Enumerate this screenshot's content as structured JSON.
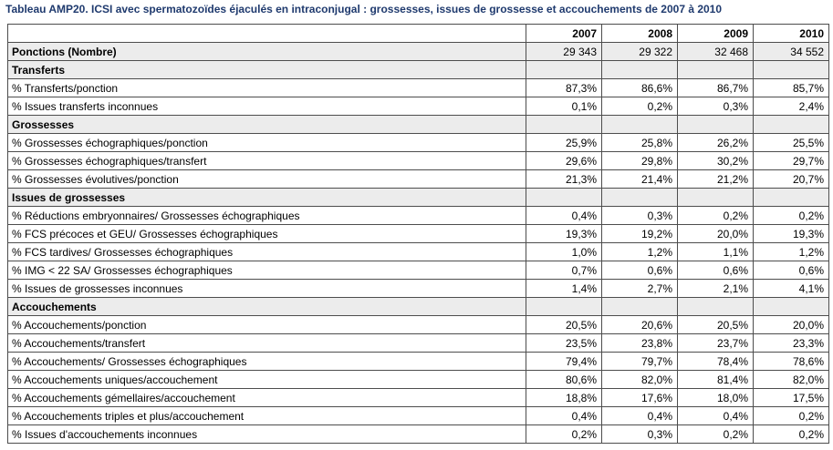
{
  "title": "Tableau AMP20. ICSI avec spermatozoïdes éjaculés en intraconjugal : grossesses, issues de grossesse et accouchements de 2007 à 2010",
  "years": [
    "2007",
    "2008",
    "2009",
    "2010"
  ],
  "ponctions": {
    "label": "Ponctions (Nombre)",
    "values": [
      "29 343",
      "29 322",
      "32 468",
      "34 552"
    ]
  },
  "sections": [
    {
      "heading": "Transferts",
      "rows": [
        {
          "label": "% Transferts/ponction",
          "values": [
            "87,3%",
            "86,6%",
            "86,7%",
            "85,7%"
          ]
        },
        {
          "label": "% Issues transferts inconnues",
          "values": [
            "0,1%",
            "0,2%",
            "0,3%",
            "2,4%"
          ]
        }
      ]
    },
    {
      "heading": "Grossesses",
      "rows": [
        {
          "label": "% Grossesses échographiques/ponction",
          "values": [
            "25,9%",
            "25,8%",
            "26,2%",
            "25,5%"
          ]
        },
        {
          "label": "% Grossesses échographiques/transfert",
          "values": [
            "29,6%",
            "29,8%",
            "30,2%",
            "29,7%"
          ]
        },
        {
          "label": "% Grossesses évolutives/ponction",
          "values": [
            "21,3%",
            "21,4%",
            "21,2%",
            "20,7%"
          ]
        }
      ]
    },
    {
      "heading": "Issues de grossesses",
      "rows": [
        {
          "label": "% Réductions embryonnaires/ Grossesses échographiques",
          "values": [
            "0,4%",
            "0,3%",
            "0,2%",
            "0,2%"
          ]
        },
        {
          "label": "% FCS précoces et GEU/ Grossesses échographiques",
          "values": [
            "19,3%",
            "19,2%",
            "20,0%",
            "19,3%"
          ]
        },
        {
          "label": "% FCS tardives/ Grossesses échographiques",
          "values": [
            "1,0%",
            "1,2%",
            "1,1%",
            "1,2%"
          ]
        },
        {
          "label": "% IMG < 22 SA/ Grossesses échographiques",
          "values": [
            "0,7%",
            "0,6%",
            "0,6%",
            "0,6%"
          ]
        },
        {
          "label": "% Issues de grossesses inconnues",
          "values": [
            "1,4%",
            "2,7%",
            "2,1%",
            "4,1%"
          ]
        }
      ]
    },
    {
      "heading": "Accouchements",
      "rows": [
        {
          "label": "% Accouchements/ponction",
          "values": [
            "20,5%",
            "20,6%",
            "20,5%",
            "20,0%"
          ]
        },
        {
          "label": "% Accouchements/transfert",
          "values": [
            "23,5%",
            "23,8%",
            "23,7%",
            "23,3%"
          ]
        },
        {
          "label": "% Accouchements/ Grossesses échographiques",
          "values": [
            "79,4%",
            "79,7%",
            "78,4%",
            "78,6%"
          ]
        },
        {
          "label": "% Accouchements uniques/accouchement",
          "values": [
            "80,6%",
            "82,0%",
            "81,4%",
            "82,0%"
          ]
        },
        {
          "label": "% Accouchements gémellaires/accouchement",
          "values": [
            "18,8%",
            "17,6%",
            "18,0%",
            "17,5%"
          ]
        },
        {
          "label": "% Accouchements triples et plus/accouchement",
          "values": [
            "0,4%",
            "0,4%",
            "0,4%",
            "0,2%"
          ]
        },
        {
          "label": "% Issues d'accouchements inconnues",
          "values": [
            "0,2%",
            "0,3%",
            "0,2%",
            "0,2%"
          ]
        }
      ]
    }
  ]
}
